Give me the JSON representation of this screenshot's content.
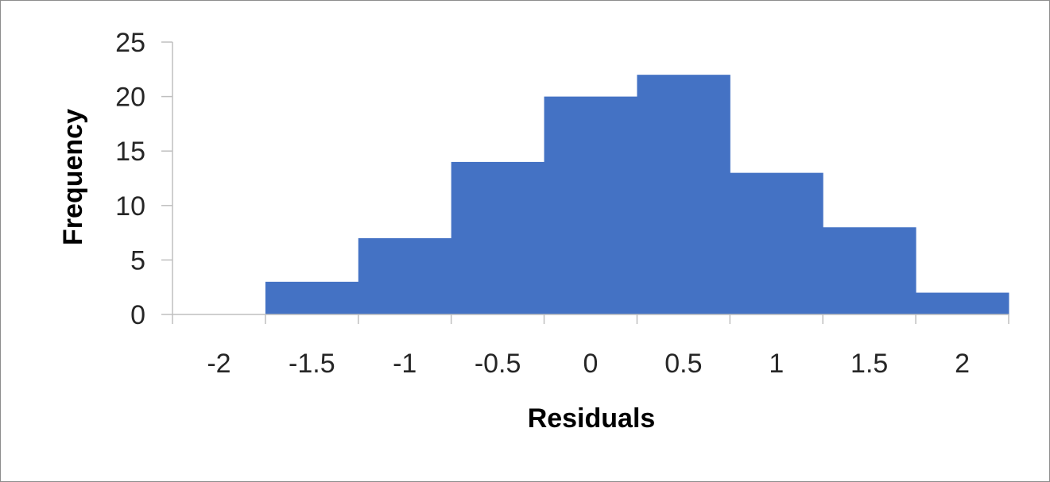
{
  "chart_data": {
    "type": "bar",
    "categories": [
      "-2",
      "-1.5",
      "-1",
      "-0.5",
      "0",
      "0.5",
      "1",
      "1.5",
      "2"
    ],
    "values": [
      0,
      3,
      7,
      14,
      20,
      22,
      13,
      8,
      2
    ],
    "xlabel": "Residuals",
    "ylabel": "Frequency",
    "ylim": [
      0,
      25
    ],
    "yticks": [
      0,
      5,
      10,
      15,
      20,
      25
    ],
    "grid": false,
    "legend": "none",
    "bar_color": "#4472C4",
    "axis_color": "#bfbfbf",
    "text_color": "#262626"
  }
}
